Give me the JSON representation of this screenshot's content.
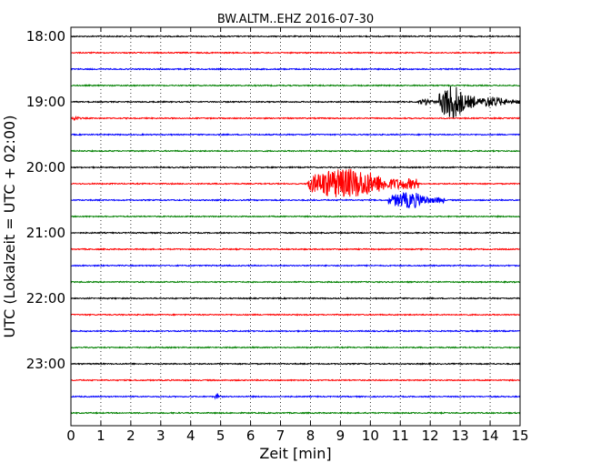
{
  "chart_data": {
    "type": "line",
    "title": "BW.ALTM..EHZ 2016-07-30",
    "xlabel": "Zeit  [min]",
    "ylabel": "UTC (Lokalzeit = UTC + 02:00)",
    "xlim": [
      0,
      15
    ],
    "x_ticks": [
      "0",
      "1",
      "2",
      "3",
      "4",
      "5",
      "6",
      "7",
      "8",
      "9",
      "10",
      "11",
      "12",
      "13",
      "14",
      "15"
    ],
    "y_ticks": [
      "18:00",
      "19:00",
      "20:00",
      "21:00",
      "22:00",
      "23:00"
    ],
    "grid": "vertical dotted at each minute",
    "trace_colors": [
      "#000000",
      "#ff0000",
      "#0000ff",
      "#008000"
    ],
    "series": [
      {
        "start": "18:00",
        "events": []
      },
      {
        "start": "18:15",
        "events": []
      },
      {
        "start": "18:30",
        "events": []
      },
      {
        "start": "18:45",
        "events": []
      },
      {
        "start": "19:00",
        "events": [
          {
            "from": 11.6,
            "to": 12.3,
            "amplitude": 0.35
          },
          {
            "from": 12.3,
            "to": 13.5,
            "amplitude": 2.0
          },
          {
            "from": 13.5,
            "to": 15.0,
            "amplitude": 0.6
          }
        ]
      },
      {
        "start": "19:15",
        "events": [
          {
            "from": 0.0,
            "to": 0.4,
            "amplitude": 0.25
          }
        ]
      },
      {
        "start": "19:30",
        "events": []
      },
      {
        "start": "19:45",
        "events": []
      },
      {
        "start": "20:00",
        "events": []
      },
      {
        "start": "20:15",
        "events": [
          {
            "from": 7.9,
            "to": 11.6,
            "amplitude": 1.7
          }
        ]
      },
      {
        "start": "20:30",
        "events": [
          {
            "from": 10.6,
            "to": 12.5,
            "amplitude": 0.9
          }
        ]
      },
      {
        "start": "20:45",
        "events": []
      },
      {
        "start": "21:00",
        "events": []
      },
      {
        "start": "21:15",
        "events": []
      },
      {
        "start": "21:30",
        "events": []
      },
      {
        "start": "21:45",
        "events": []
      },
      {
        "start": "22:00",
        "events": []
      },
      {
        "start": "22:15",
        "events": []
      },
      {
        "start": "22:30",
        "events": []
      },
      {
        "start": "22:45",
        "events": []
      },
      {
        "start": "23:00",
        "events": []
      },
      {
        "start": "23:15",
        "events": []
      },
      {
        "start": "23:30",
        "events": [
          {
            "from": 4.8,
            "to": 5.0,
            "amplitude": 0.3
          }
        ]
      },
      {
        "start": "23:45",
        "events": []
      }
    ]
  }
}
